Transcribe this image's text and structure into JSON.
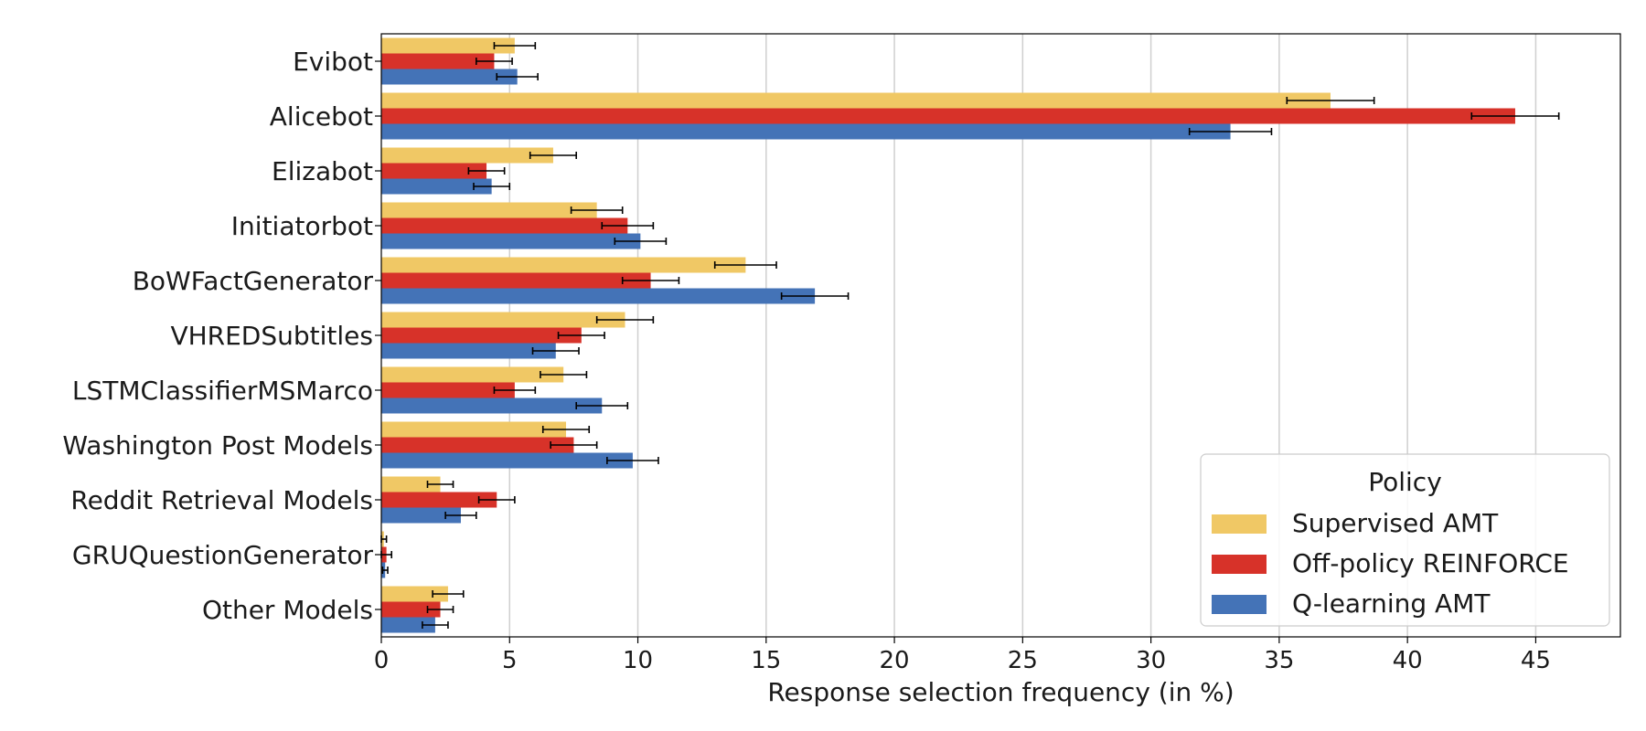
{
  "chart_data": {
    "type": "bar",
    "orientation": "horizontal",
    "title": "",
    "xlabel": "Response selection frequency (in %)",
    "ylabel": "",
    "xlim": [
      0,
      48.3
    ],
    "xticks": [
      0,
      5,
      10,
      15,
      20,
      25,
      30,
      35,
      40,
      45
    ],
    "grid": "vertical",
    "legend_placement": "bottom-right",
    "legend_title": "Policy",
    "categories": [
      "Evibot",
      "Alicebot",
      "Elizabot",
      "Initiatorbot",
      "BoWFactGenerator",
      "VHREDSubtitles",
      "LSTMClassifierMSMarco",
      "Washington Post Models",
      "Reddit Retrieval Models",
      "GRUQuestionGenerator",
      "Other Models"
    ],
    "series": [
      {
        "name": "Supervised AMT",
        "color": "#f0c865",
        "values": [
          5.2,
          37.0,
          6.7,
          8.4,
          14.2,
          9.5,
          7.1,
          7.2,
          2.3,
          0.1,
          2.6
        ],
        "errors": [
          0.8,
          1.7,
          0.9,
          1.0,
          1.2,
          1.1,
          0.9,
          0.9,
          0.5,
          0.1,
          0.6
        ]
      },
      {
        "name": "Off-policy REINFORCE",
        "color": "#d73229",
        "values": [
          4.4,
          44.2,
          4.1,
          9.6,
          10.5,
          7.8,
          5.2,
          7.5,
          4.5,
          0.2,
          2.3
        ],
        "errors": [
          0.7,
          1.7,
          0.7,
          1.0,
          1.1,
          0.9,
          0.8,
          0.9,
          0.7,
          0.2,
          0.5
        ]
      },
      {
        "name": "Q-learning AMT",
        "color": "#4473b7",
        "values": [
          5.3,
          33.1,
          4.3,
          10.1,
          16.9,
          6.8,
          8.6,
          9.8,
          3.1,
          0.15,
          2.1
        ],
        "errors": [
          0.8,
          1.6,
          0.7,
          1.0,
          1.3,
          0.9,
          1.0,
          1.0,
          0.6,
          0.1,
          0.5
        ]
      }
    ]
  }
}
